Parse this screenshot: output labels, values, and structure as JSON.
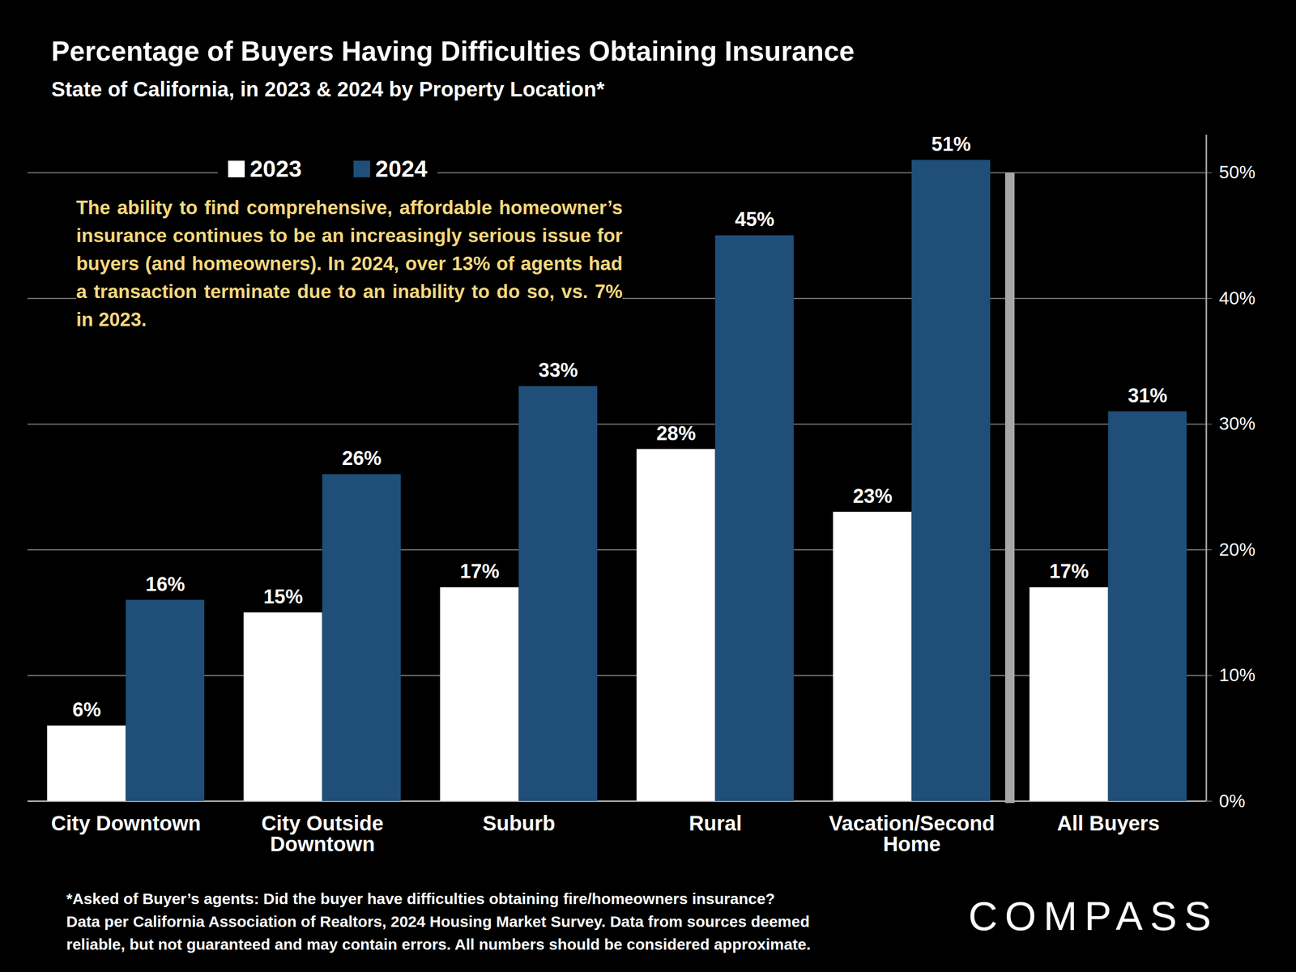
{
  "chart_data": {
    "type": "bar",
    "title": "Percentage of Buyers Having Difficulties Obtaining Insurance",
    "subtitle": "State of California, in 2023 & 2024 by Property Location*",
    "categories": [
      "City Downtown",
      "City Outside Downtown",
      "Suburb",
      "Rural",
      "Vacation/Second Home",
      "All Buyers"
    ],
    "series": [
      {
        "name": "2023",
        "color": "#ffffff",
        "values": [
          6,
          15,
          17,
          28,
          23,
          17
        ],
        "value_labels": [
          "6%",
          "15%",
          "17%",
          "28%",
          "23%",
          "17%"
        ]
      },
      {
        "name": "2024",
        "color": "#1f4e79",
        "values": [
          16,
          26,
          33,
          45,
          51,
          31
        ],
        "value_labels": [
          "16%",
          "26%",
          "33%",
          "45%",
          "51%",
          "31%"
        ]
      }
    ],
    "ylim": [
      0,
      53
    ],
    "yticks": [
      {
        "value": 0,
        "label": "0%"
      },
      {
        "value": 10,
        "label": "10%"
      },
      {
        "value": 20,
        "label": "20%"
      },
      {
        "value": 30,
        "label": "30%"
      },
      {
        "value": 40,
        "label": "40%"
      },
      {
        "value": 50,
        "label": "50%"
      }
    ],
    "grid": true,
    "data_labels": true,
    "legend": "top-left",
    "annotation": "The ability to find comprehensive, affordable homeowner’s insurance continues to be an increasingly serious issue for buyers (and homeowners). In 2024, over 13% of agents had a transaction terminate due to an inability to do so, vs. 7% in 2023.",
    "footnote": [
      "*Asked of Buyer’s agents:  Did the buyer have difficulties obtaining fire/homeowners insurance?",
      "Data per California Association of Realtors, 2024 Housing Market Survey. Data from sources deemed",
      "reliable, but not guaranteed and may contain errors. All numbers should be considered approximate."
    ],
    "logo": "COMPASS"
  }
}
